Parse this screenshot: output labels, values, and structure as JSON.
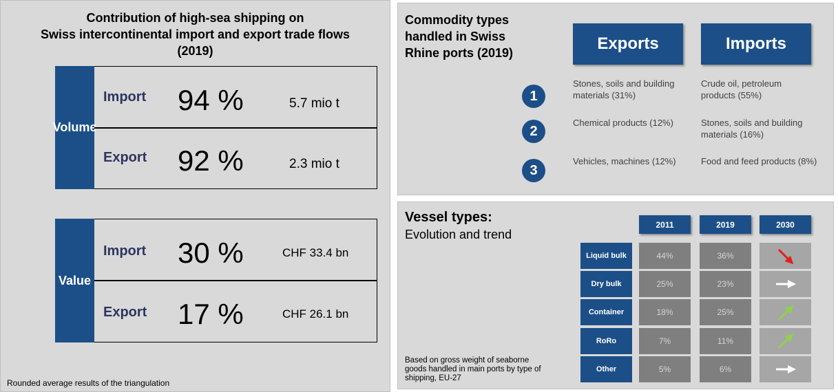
{
  "left": {
    "title": [
      "Contribution of high-sea shipping on",
      "Swiss intercontinental import and export trade flows",
      "(2019)"
    ],
    "blocks": [
      {
        "label": "Volume",
        "rows": [
          {
            "label": "Import",
            "share": "94 %",
            "amount": "5.7 mio t"
          },
          {
            "label": "Export",
            "share": "92 %",
            "amount": "2.3 mio t"
          }
        ]
      },
      {
        "label": "Value",
        "rows": [
          {
            "label": "Import",
            "share": "30 %",
            "amount": "CHF 33.4 bn"
          },
          {
            "label": "Export",
            "share": "17 %",
            "amount": "CHF 26.1 bn"
          }
        ]
      }
    ],
    "footnote": "Rounded average results of the triangulation"
  },
  "commodities": {
    "title": [
      "Commodity types",
      "handled in Swiss",
      "Rhine ports (2019)"
    ],
    "columns": [
      "Exports",
      "Imports"
    ],
    "rows": [
      {
        "rank": "1",
        "exports": "Stones, soils and building materials (31%)",
        "imports": "Crude oil, petroleum products (55%)"
      },
      {
        "rank": "2",
        "exports": "Chemical products (12%)",
        "imports": "Stones, soils and building materials (16%)"
      },
      {
        "rank": "3",
        "exports": "Vehicles, machines (12%)",
        "imports": "Food and feed products (8%)"
      }
    ]
  },
  "vessels": {
    "title": "Vessel types:",
    "subtitle": "Evolution and trend",
    "years": [
      "2011",
      "2019",
      "2030"
    ],
    "rows": [
      {
        "label": "Liquid bulk",
        "values": [
          "44%",
          "36%"
        ]
      },
      {
        "label": "Dry bulk",
        "values": [
          "25%",
          "23%"
        ]
      },
      {
        "label": "Container",
        "values": [
          "18%",
          "25%"
        ]
      },
      {
        "label": "RoRo",
        "values": [
          "7%",
          "11%"
        ]
      },
      {
        "label": "Other",
        "values": [
          "5%",
          "6%"
        ]
      }
    ],
    "note": "Based on gross weight of seaborne goods handled in main ports by type of shipping, EU-27"
  }
}
